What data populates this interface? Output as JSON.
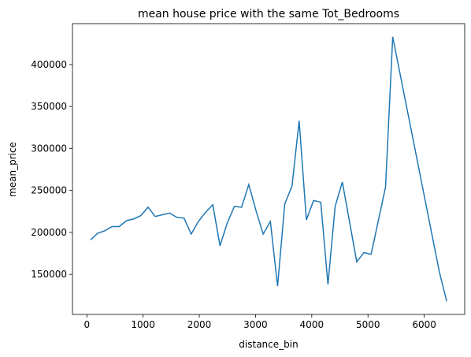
{
  "chart_data": {
    "type": "line",
    "title": "mean house price with the same Tot_Bedrooms",
    "x_label": "distance_bin",
    "y_label": "mean_price",
    "x": [
      64,
      192,
      320,
      448,
      576,
      704,
      832,
      960,
      1088,
      1216,
      1344,
      1472,
      1600,
      1728,
      1856,
      1984,
      2112,
      2240,
      2368,
      2496,
      2624,
      2752,
      2880,
      3008,
      3136,
      3264,
      3392,
      3520,
      3648,
      3776,
      3904,
      4032,
      4160,
      4288,
      4416,
      4544,
      4800,
      4928,
      5056,
      5312,
      5440,
      6272,
      6400
    ],
    "series": [
      {
        "name": "mean_price",
        "color": "#1f77b4",
        "values": [
          191000,
          199000,
          202000,
          207000,
          207000,
          214000,
          216000,
          220000,
          230000,
          219000,
          221000,
          223000,
          218000,
          217000,
          198000,
          213000,
          224000,
          233000,
          184000,
          211000,
          231000,
          230000,
          257000,
          226000,
          198000,
          213000,
          136000,
          234000,
          255000,
          333000,
          215000,
          238000,
          236000,
          138000,
          231000,
          260000,
          165000,
          176000,
          174000,
          254000,
          433000,
          152000,
          118000
        ]
      }
    ],
    "xlim": [
      -256,
      6720
    ],
    "ylim": [
      102250,
      448750
    ],
    "xticks": [
      0,
      1000,
      2000,
      3000,
      4000,
      5000,
      6000
    ],
    "yticks": [
      150000,
      200000,
      250000,
      300000,
      350000,
      400000
    ]
  }
}
